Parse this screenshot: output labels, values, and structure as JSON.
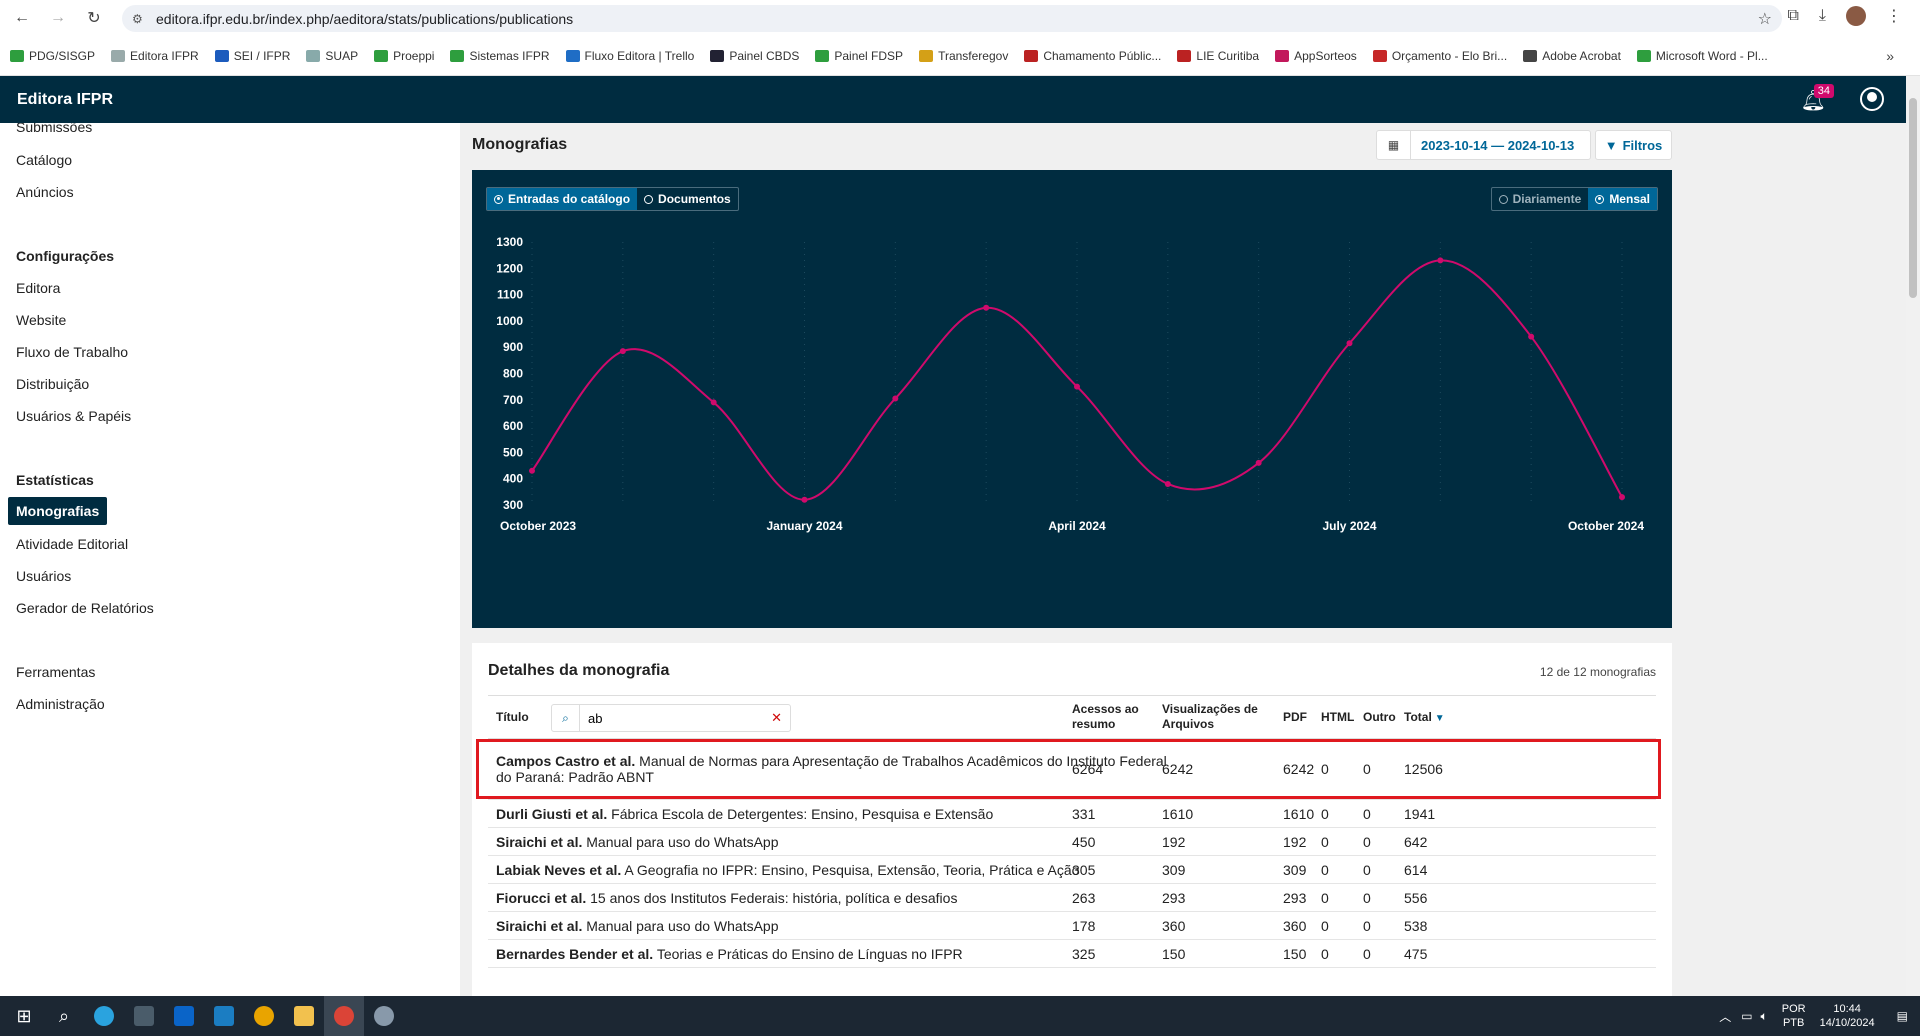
{
  "browser": {
    "url": "editora.ifpr.edu.br/index.php/aeditora/stats/publications/publications",
    "bookmarks": [
      {
        "label": "PDG/SISGP",
        "color": "#2e9e3e"
      },
      {
        "label": "Editora IFPR",
        "color": "#9aa"
      },
      {
        "label": "SEI / IFPR",
        "color": "#1c5bbd"
      },
      {
        "label": "SUAP",
        "color": "#8aa"
      },
      {
        "label": "Proeppi",
        "color": "#2e9e3e"
      },
      {
        "label": "Sistemas IFPR",
        "color": "#2e9e3e"
      },
      {
        "label": "Fluxo Editora | Trello",
        "color": "#1f6dc5"
      },
      {
        "label": "Painel CBDS",
        "color": "#223"
      },
      {
        "label": "Painel FDSP",
        "color": "#2e9e3e"
      },
      {
        "label": "Transferegov",
        "color": "#d4a017"
      },
      {
        "label": "Chamamento Públic...",
        "color": "#b22"
      },
      {
        "label": "LIE Curitiba",
        "color": "#b22"
      },
      {
        "label": "AppSorteos",
        "color": "#c2185b"
      },
      {
        "label": "Orçamento - Elo Bri...",
        "color": "#c62828"
      },
      {
        "label": "Adobe Acrobat",
        "color": "#444"
      },
      {
        "label": "Microsoft Word - Pl...",
        "color": "#2e9e3e"
      }
    ],
    "bookmarks_more": "»"
  },
  "app": {
    "title": "Editora IFPR",
    "notification_count": "34"
  },
  "sidebar": {
    "partial_item": "Submissões",
    "items_top": [
      "Catálogo",
      "Anúncios"
    ],
    "config_heading": "Configurações",
    "config_items": [
      "Editora",
      "Website",
      "Fluxo de Trabalho",
      "Distribuição",
      "Usuários & Papéis"
    ],
    "stats_heading": "Estatísticas",
    "stats_active": "Monografias",
    "stats_items": [
      "Atividade Editorial",
      "Usuários",
      "Gerador de Relatórios"
    ],
    "bottom_items": [
      "Ferramentas",
      "Administração"
    ]
  },
  "main": {
    "title": "Monografias",
    "date_range": "2023-10-14 — 2024-10-13",
    "filter_label": "Filtros",
    "type_tabs": [
      {
        "label": "Entradas do catálogo",
        "active": true
      },
      {
        "label": "Documentos",
        "active": false
      }
    ],
    "interval_tabs": [
      {
        "label": "Diariamente",
        "active": false
      },
      {
        "label": "Mensal",
        "active": true
      }
    ]
  },
  "chart_data": {
    "type": "line",
    "x": [
      "2023-10",
      "2023-11",
      "2023-12",
      "2024-01",
      "2024-02",
      "2024-03",
      "2024-04",
      "2024-05",
      "2024-06",
      "2024-07",
      "2024-08",
      "2024-09",
      "2024-10"
    ],
    "x_tick_labels": [
      "October 2023",
      "January 2024",
      "April 2024",
      "July 2024",
      "October 2024"
    ],
    "x_tick_index": [
      0,
      3,
      6,
      9,
      12
    ],
    "y_ticks": [
      300,
      400,
      500,
      600,
      700,
      800,
      900,
      1000,
      1100,
      1200,
      1300
    ],
    "ylim": [
      300,
      1300
    ],
    "series": [
      {
        "values": [
          430,
          885,
          690,
          320,
          705,
          1050,
          750,
          380,
          460,
          915,
          1230,
          940,
          330
        ]
      }
    ],
    "line_color": "#d00a6c",
    "grid": "dotted-vertical"
  },
  "details": {
    "title": "Detalhes da monografia",
    "count": "12 de 12 monografias",
    "columns": {
      "title": "Título",
      "abstract_views": "Acessos ao resumo",
      "file_views": "Visualizações de Arquivos",
      "pdf": "PDF",
      "html": "HTML",
      "other": "Outro",
      "total": "Total"
    },
    "search_value": "ab",
    "rows": [
      {
        "authors": "Campos Castro et al.",
        "title": "Manual de Normas para Apresentação de Trabalhos Acadêmicos do Instituto Federal do Paraná: Padrão ABNT",
        "abstract": "6264",
        "files": "6242",
        "pdf": "6242",
        "html": "0",
        "other": "0",
        "total": "12506"
      },
      {
        "authors": "Durli Giusti et al.",
        "title": "Fábrica Escola de Detergentes: Ensino, Pesquisa e Extensão",
        "abstract": "331",
        "files": "1610",
        "pdf": "1610",
        "html": "0",
        "other": "0",
        "total": "1941"
      },
      {
        "authors": "Siraichi et al.",
        "title": "Manual para uso do WhatsApp",
        "abstract": "450",
        "files": "192",
        "pdf": "192",
        "html": "0",
        "other": "0",
        "total": "642"
      },
      {
        "authors": "Labiak Neves et al.",
        "title": "A Geografia no IFPR: Ensino, Pesquisa, Extensão, Teoria, Prática e Ação",
        "abstract": "305",
        "files": "309",
        "pdf": "309",
        "html": "0",
        "other": "0",
        "total": "614"
      },
      {
        "authors": "Fiorucci et al.",
        "title": "15 anos dos Institutos Federais: história, política e desafios",
        "abstract": "263",
        "files": "293",
        "pdf": "293",
        "html": "0",
        "other": "0",
        "total": "556"
      },
      {
        "authors": "Siraichi et al.",
        "title": "Manual para uso do WhatsApp",
        "abstract": "178",
        "files": "360",
        "pdf": "360",
        "html": "0",
        "other": "0",
        "total": "538"
      },
      {
        "authors": "Bernardes Bender et al.",
        "title": "Teorias e Práticas do Ensino de Línguas no IFPR",
        "abstract": "325",
        "files": "150",
        "pdf": "150",
        "html": "0",
        "other": "0",
        "total": "475"
      }
    ]
  },
  "taskbar": {
    "lang_line1": "POR",
    "lang_line2": "PTB",
    "time": "10:44",
    "date": "14/10/2024"
  }
}
